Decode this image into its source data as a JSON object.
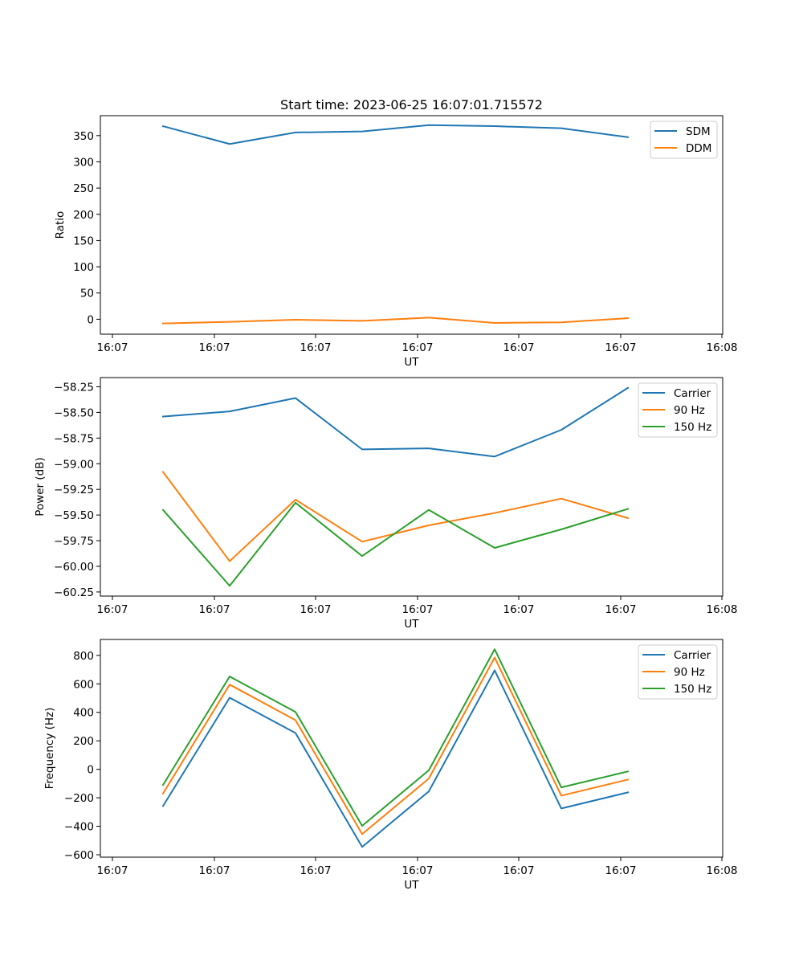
{
  "figure": {
    "title": "Start time: 2023-06-25 16:07:01.715572"
  },
  "chart_data": [
    {
      "type": "line",
      "xlabel": "UT",
      "ylabel": "Ratio",
      "x_tick_labels": [
        "16:07",
        "16:07",
        "16:07",
        "16:07",
        "16:07",
        "16:07",
        "16:08"
      ],
      "y_ticks": [
        0,
        50,
        100,
        150,
        200,
        250,
        300,
        350
      ],
      "y_tick_labels": [
        "0",
        "50",
        "100",
        "150",
        "200",
        "250",
        "300",
        "350"
      ],
      "ylim": [
        -28.5,
        388
      ],
      "x": [
        1,
        2,
        3,
        4,
        5,
        6,
        7,
        8
      ],
      "legend_position": "top-right",
      "grid": false,
      "series": [
        {
          "name": "SDM",
          "color": "#1f77b4",
          "values": [
            368,
            334,
            356,
            358,
            370,
            368,
            364,
            347
          ]
        },
        {
          "name": "DDM",
          "color": "#ff7f0e",
          "values": [
            -8,
            -5,
            -1,
            -3,
            3,
            -7,
            -6,
            2
          ]
        }
      ]
    },
    {
      "type": "line",
      "xlabel": "UT",
      "ylabel": "Power (dB)",
      "x_tick_labels": [
        "16:07",
        "16:07",
        "16:07",
        "16:07",
        "16:07",
        "16:07",
        "16:08"
      ],
      "y_ticks": [
        -60.25,
        -60.0,
        -59.75,
        -59.5,
        -59.25,
        -59.0,
        -58.75,
        -58.5,
        -58.25
      ],
      "y_tick_labels": [
        "−60.25",
        "−60.00",
        "−59.75",
        "−59.50",
        "−59.25",
        "−59.00",
        "−58.75",
        "−58.50",
        "−58.25"
      ],
      "ylim": [
        -60.29,
        -58.16
      ],
      "x": [
        1,
        2,
        3,
        4,
        5,
        6,
        7,
        8
      ],
      "legend_position": "top-right",
      "grid": false,
      "series": [
        {
          "name": "Carrier",
          "color": "#1f77b4",
          "values": [
            -58.54,
            -58.49,
            -58.36,
            -58.86,
            -58.85,
            -58.93,
            -58.67,
            -58.26
          ]
        },
        {
          "name": "90 Hz",
          "color": "#ff7f0e",
          "values": [
            -59.08,
            -59.95,
            -59.35,
            -59.76,
            -59.6,
            -59.48,
            -59.34,
            -59.53
          ]
        },
        {
          "name": "150 Hz",
          "color": "#2ca02c",
          "values": [
            -59.45,
            -60.19,
            -59.38,
            -59.9,
            -59.45,
            -59.82,
            -59.64,
            -59.44
          ]
        }
      ]
    },
    {
      "type": "line",
      "xlabel": "UT",
      "ylabel": "Frequency (Hz)",
      "x_tick_labels": [
        "16:07",
        "16:07",
        "16:07",
        "16:07",
        "16:07",
        "16:07",
        "16:08"
      ],
      "y_ticks": [
        -600,
        -400,
        -200,
        0,
        200,
        400,
        600,
        800
      ],
      "y_tick_labels": [
        "−600",
        "−400",
        "−200",
        "0",
        "200",
        "400",
        "600",
        "800"
      ],
      "ylim": [
        -617,
        912
      ],
      "x": [
        1,
        2,
        3,
        4,
        5,
        6,
        7,
        8
      ],
      "legend_position": "top-right",
      "grid": false,
      "series": [
        {
          "name": "Carrier",
          "color": "#1f77b4",
          "values": [
            -258,
            503,
            255,
            -545,
            -155,
            695,
            -275,
            -162
          ]
        },
        {
          "name": "90 Hz",
          "color": "#ff7f0e",
          "values": [
            -170,
            595,
            345,
            -455,
            -65,
            785,
            -185,
            -72
          ]
        },
        {
          "name": "150 Hz",
          "color": "#2ca02c",
          "values": [
            -110,
            652,
            403,
            -397,
            -7,
            843,
            -127,
            -15
          ]
        }
      ]
    }
  ]
}
